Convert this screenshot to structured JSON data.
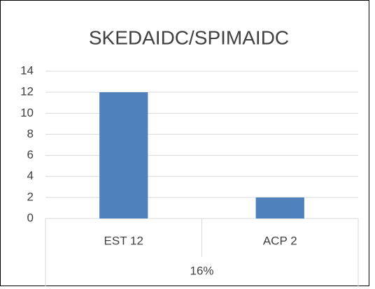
{
  "chart_data": {
    "type": "bar",
    "title": "SKEDAIDC/SPIMAIDC",
    "categories": [
      "EST 12",
      "ACP 2"
    ],
    "values": [
      12,
      2
    ],
    "color": "#4f81bd",
    "group": "16%",
    "ylim": [
      0,
      14
    ],
    "yticks": [
      0,
      2,
      4,
      6,
      8,
      10,
      12,
      14
    ],
    "grid": true
  }
}
